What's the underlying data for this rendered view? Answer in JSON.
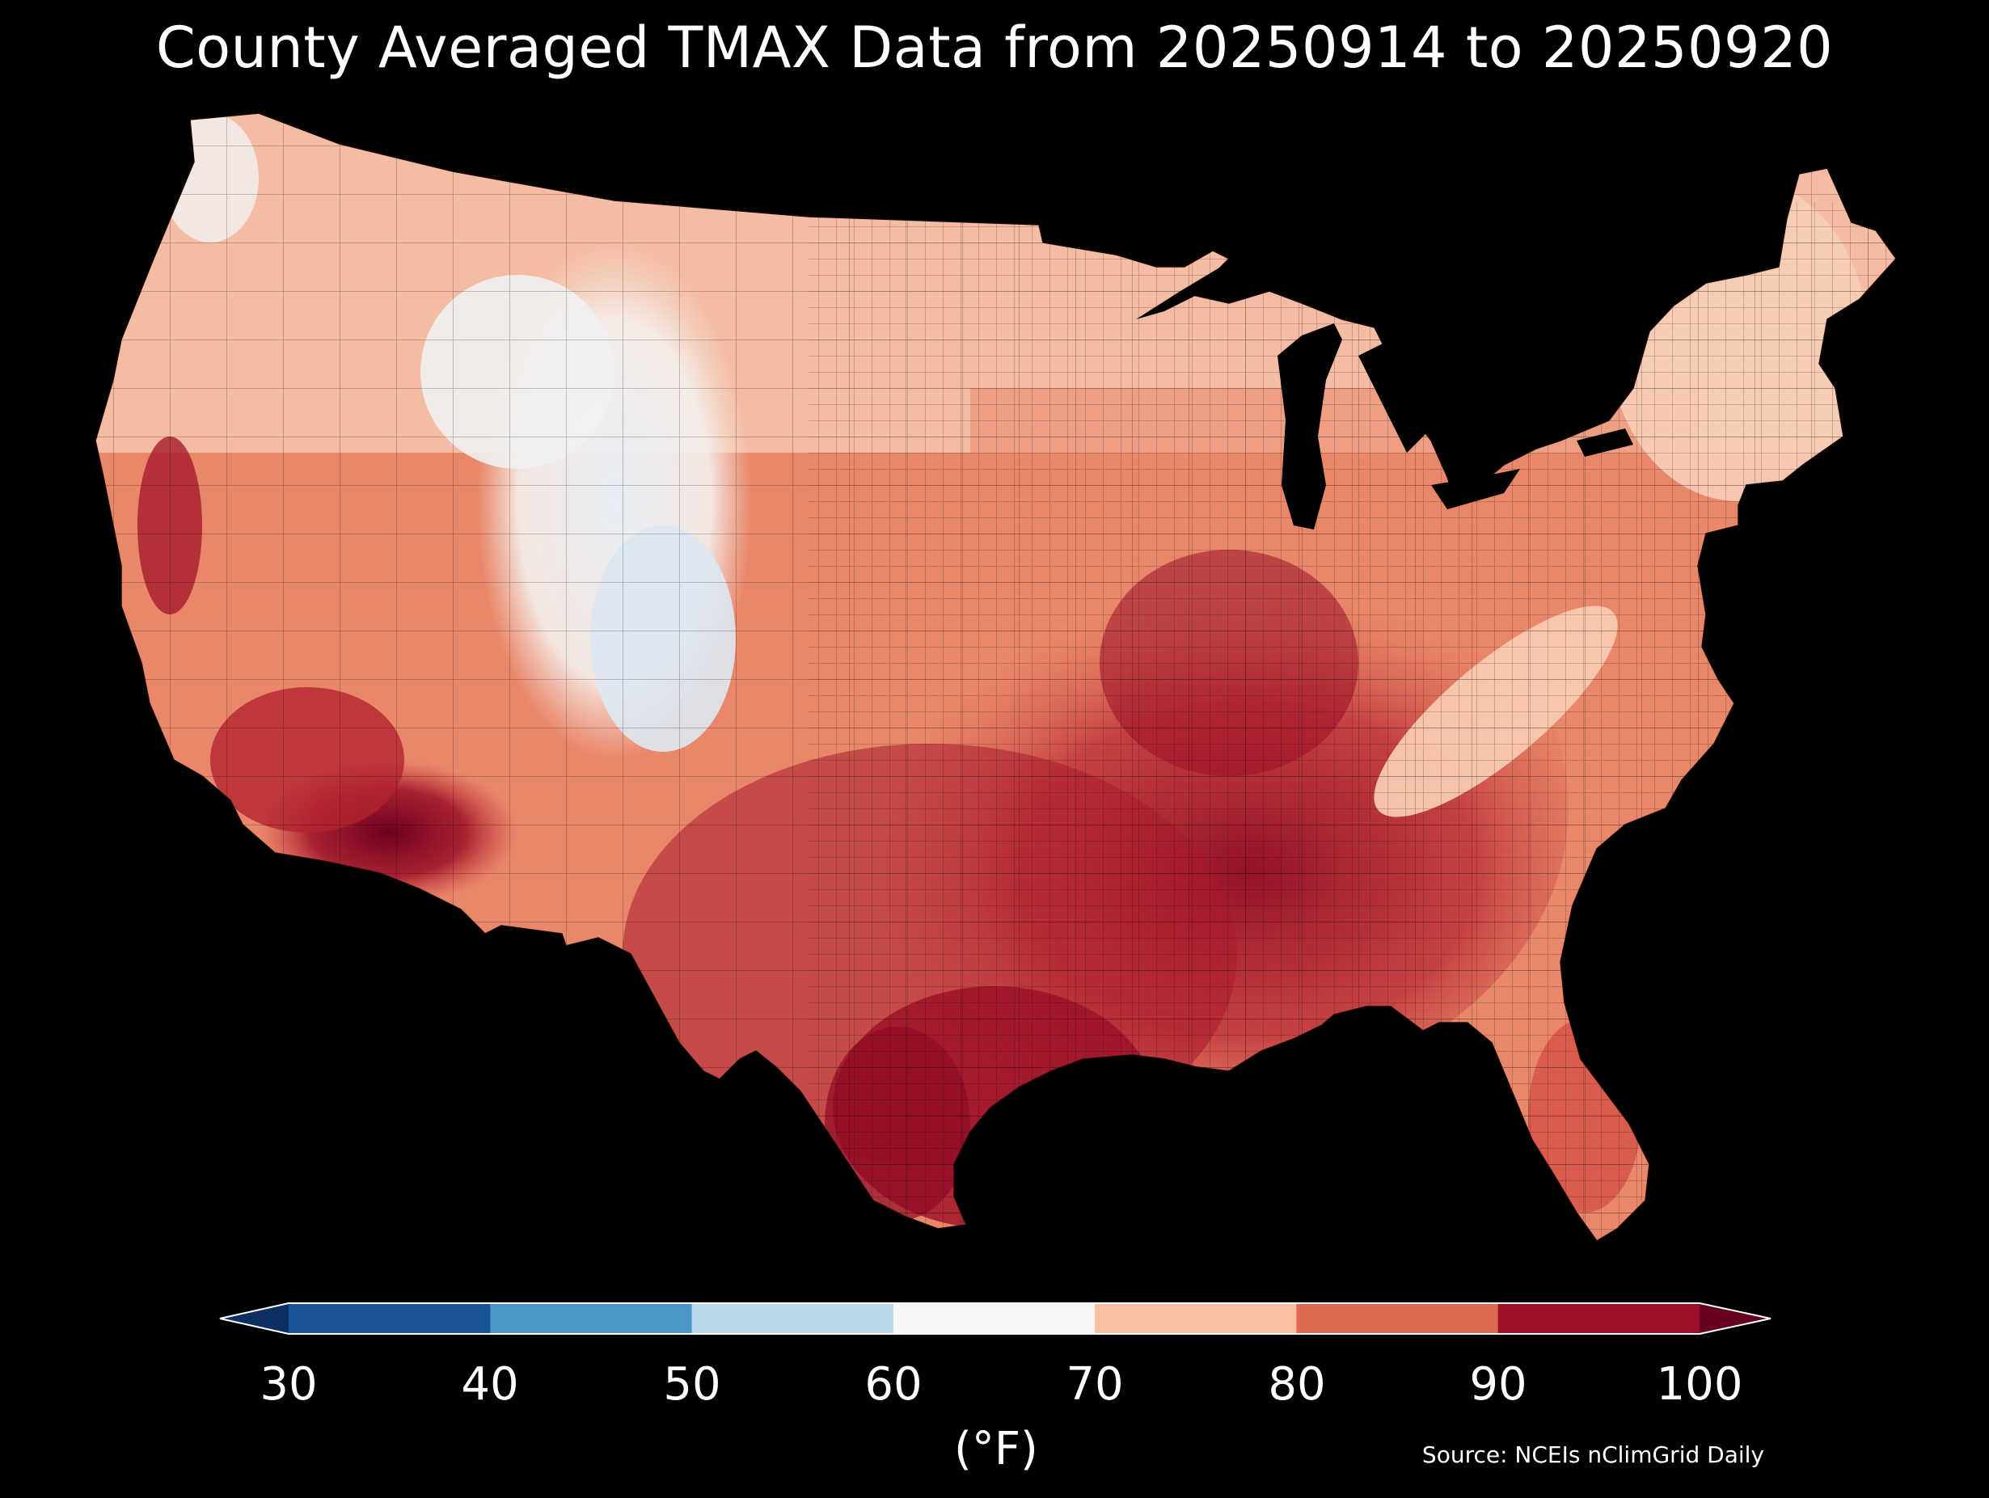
{
  "title": "County Averaged TMAX Data from 20250914 to 20250920",
  "colorbar": {
    "unit_label": "(°F)",
    "ticks": [
      "30",
      "40",
      "50",
      "60",
      "70",
      "80",
      "90",
      "100"
    ],
    "bins": [
      {
        "min": 30,
        "max": 40,
        "color": "#1a5497"
      },
      {
        "min": 40,
        "max": 50,
        "color": "#4a97c8"
      },
      {
        "min": 50,
        "max": 60,
        "color": "#b6d8ea"
      },
      {
        "min": 60,
        "max": 70,
        "color": "#f5f5f5"
      },
      {
        "min": 70,
        "max": 80,
        "color": "#f8c0a2"
      },
      {
        "min": 80,
        "max": 90,
        "color": "#de6a53"
      },
      {
        "min": 90,
        "max": 100,
        "color": "#9b0f27"
      }
    ],
    "under_color": "#0b2f61",
    "over_color": "#66001e"
  },
  "source": "Source: NCEIs nClimGrid Daily",
  "map": {
    "region": "Contiguous United States (county level)",
    "variable": "TMAX",
    "background": "#000000"
  }
}
